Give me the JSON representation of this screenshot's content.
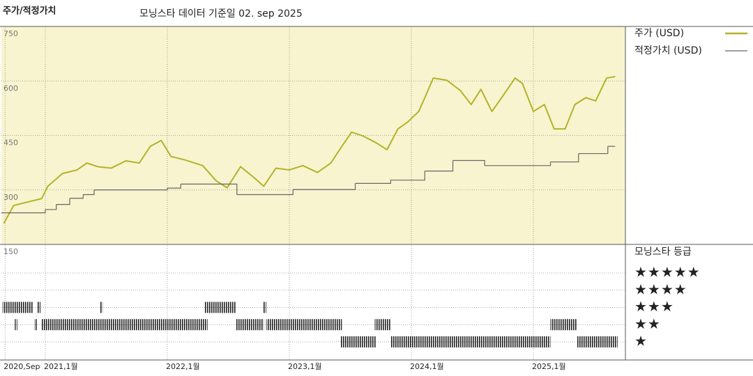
{
  "chart_data": [
    {
      "type": "line",
      "title": "주가/적정가치",
      "subtitle": "모닝스타 데이터 기준일 02. sep 2025",
      "xlim": [
        2020.64,
        2025.754
      ],
      "xticks": [
        {
          "value": 2020.67,
          "label": "2020,Sep"
        },
        {
          "value": 2021,
          "label": "2021,1월"
        },
        {
          "value": 2022,
          "label": "2022,1월"
        },
        {
          "value": 2023,
          "label": "2023,1월"
        },
        {
          "value": 2024,
          "label": "2024,1월"
        },
        {
          "value": 2025,
          "label": "2025,1월"
        }
      ],
      "ylim": [
        150,
        750
      ],
      "yticks": [
        150,
        300,
        450,
        600,
        750
      ],
      "grid": true,
      "series": [
        {
          "name": "주가 (USD)",
          "color": "#b3b22a",
          "style": "line",
          "x": [
            2020.66,
            2020.74,
            2020.86,
            2020.97,
            2021.02,
            2021.14,
            2021.26,
            2021.34,
            2021.43,
            2021.54,
            2021.66,
            2021.77,
            2021.86,
            2021.95,
            2022.03,
            2022.14,
            2022.29,
            2022.4,
            2022.49,
            2022.6,
            2022.71,
            2022.79,
            2022.89,
            2023.0,
            2023.11,
            2023.23,
            2023.34,
            2023.43,
            2023.51,
            2023.6,
            2023.71,
            2023.8,
            2023.89,
            2023.97,
            2024.06,
            2024.11,
            2024.18,
            2024.29,
            2024.4,
            2024.49,
            2024.57,
            2024.66,
            2024.74,
            2024.85,
            2024.91,
            2025.0,
            2025.09,
            2025.17,
            2025.26,
            2025.34,
            2025.43,
            2025.51,
            2025.6,
            2025.67
          ],
          "values": [
            208,
            257,
            267,
            276,
            310,
            345,
            355,
            374,
            364,
            360,
            380,
            374,
            420,
            436,
            392,
            383,
            367,
            325,
            306,
            364,
            334,
            310,
            360,
            355,
            367,
            348,
            374,
            420,
            459,
            449,
            430,
            411,
            468,
            487,
            516,
            554,
            608,
            602,
            574,
            535,
            577,
            516,
            554,
            608,
            593,
            516,
            535,
            468,
            468,
            535,
            554,
            545,
            608,
            612
          ]
        },
        {
          "name": "적정가치 (USD)",
          "color": "#666666",
          "style": "step",
          "x": [
            2020.64,
            2021.0,
            2021.09,
            2021.2,
            2021.31,
            2021.4,
            2022.0,
            2022.11,
            2022.57,
            2023.03,
            2023.54,
            2023.83,
            2024.11,
            2024.34,
            2024.6,
            2025.14,
            2025.37,
            2025.61,
            2025.67
          ],
          "values": [
            237,
            246,
            260,
            277,
            287,
            300,
            305,
            316,
            287,
            301,
            318,
            327,
            352,
            381,
            367,
            377,
            400,
            420,
            420
          ]
        }
      ]
    },
    {
      "type": "rating",
      "title": "모닝스타 등급",
      "color": "#222222",
      "levels": [
        {
          "value": 5,
          "label": "★★★★★"
        },
        {
          "value": 4,
          "label": "★★★★"
        },
        {
          "value": 3,
          "label": "★★★"
        },
        {
          "value": 2,
          "label": "★★"
        },
        {
          "value": 1,
          "label": "★"
        }
      ],
      "x_start": [
        2020.65,
        2020.93,
        2021.45,
        2022.3,
        2022.78,
        2020.75,
        2020.91,
        2020.97,
        2022.56,
        2022.81,
        2023.7,
        2025.14,
        2023.42,
        2023.83,
        2025.36
      ],
      "x_end": [
        2020.9,
        2020.96,
        2021.47,
        2022.56,
        2022.81,
        2020.77,
        2020.93,
        2022.33,
        2022.79,
        2023.43,
        2023.83,
        2025.36,
        2023.71,
        2025.14,
        2025.69
      ],
      "stars": [
        3,
        3,
        3,
        3,
        3,
        2,
        2,
        2,
        2,
        2,
        2,
        2,
        1,
        1,
        1
      ]
    }
  ]
}
